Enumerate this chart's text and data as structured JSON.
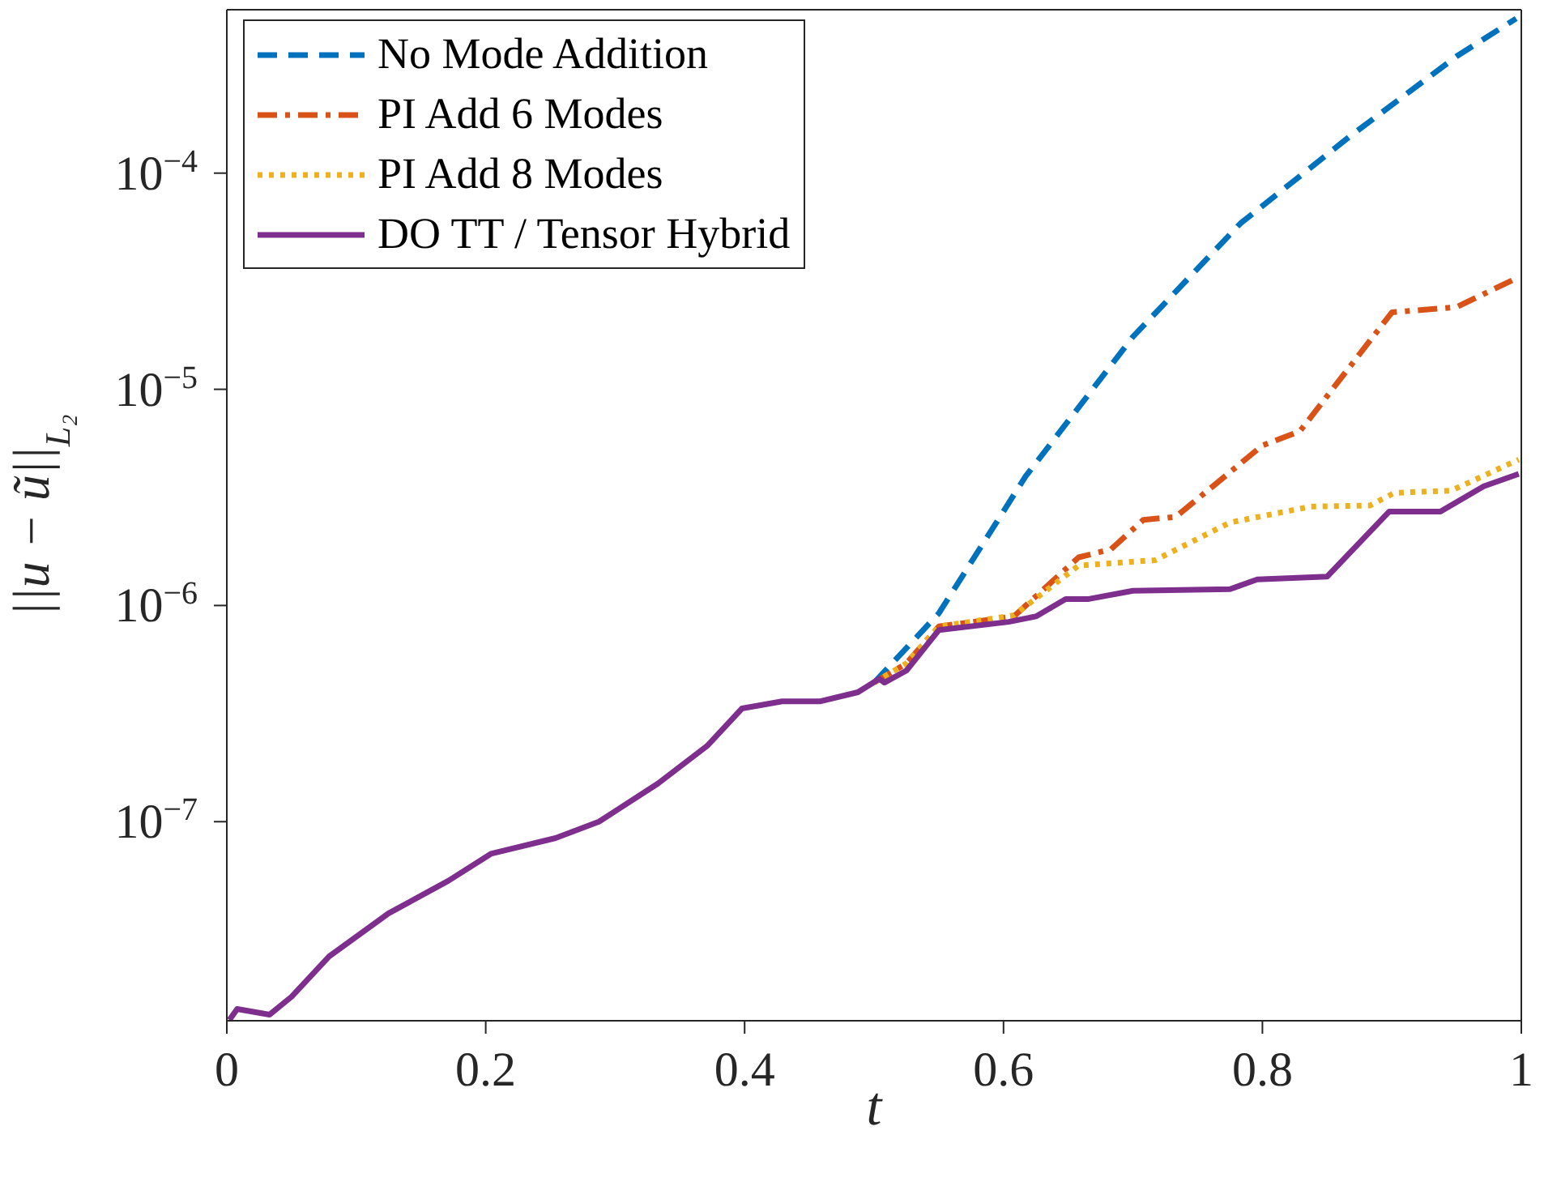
{
  "chart_data": {
    "type": "line",
    "xlabel": "t",
    "ylabel": "||u − ũ||$_{L₂}$",
    "log": "y",
    "xlim": [
      0,
      1
    ],
    "ylim": [
      1.2e-08,
      0.00057
    ],
    "xticks": [
      0,
      0.2,
      0.4,
      0.6,
      0.8,
      1
    ],
    "yticks": [
      {
        "value": 1e-07,
        "label": "10$^{−7}$"
      },
      {
        "value": 1e-06,
        "label": "10$^{−6}$"
      },
      {
        "value": 1e-05,
        "label": "10$^{−5}$"
      },
      {
        "value": 0.0001,
        "label": "10$^{−4}$"
      }
    ],
    "legend": "top left",
    "marker": "none",
    "series": [
      {
        "name": "No Mode Addition",
        "color": "#0072bd",
        "line_style": "dashed",
        "x": [
          0.5,
          0.55,
          0.617,
          0.7,
          0.783,
          0.867,
          0.95,
          0.996
        ],
        "values": [
          4.4e-07,
          9.2e-07,
          3.95e-06,
          1.75e-05,
          5.85e-05,
          0.000147,
          0.000347,
          0.000519
        ]
      },
      {
        "name": "PI Add 6 Modes",
        "color": "#d95319",
        "line_style": "dashdot",
        "x": [
          0.5,
          0.525,
          0.55,
          0.608,
          0.658,
          0.683,
          0.708,
          0.733,
          0.8,
          0.829,
          0.9,
          0.95,
          0.996
        ],
        "values": [
          4.4e-07,
          5.4e-07,
          8e-07,
          8.9e-07,
          1.67e-06,
          1.82e-06,
          2.49e-06,
          2.57e-06,
          5.5e-06,
          6.4e-06,
          2.27e-05,
          2.4e-05,
          3.26e-05
        ]
      },
      {
        "name": "PI Add 8 Modes",
        "color": "#edb120",
        "line_style": "dotted",
        "x": [
          0.5,
          0.525,
          0.55,
          0.608,
          0.658,
          0.717,
          0.775,
          0.8375,
          0.883,
          0.902,
          0.946,
          0.998
        ],
        "values": [
          4.4e-07,
          5.4e-07,
          8e-07,
          9e-07,
          1.53e-06,
          1.62e-06,
          2.42e-06,
          2.87e-06,
          2.9e-06,
          3.32e-06,
          3.4e-06,
          4.73e-06
        ]
      },
      {
        "name": "DO TT / Tensor Hybrid",
        "color": "#7e2f8e",
        "line_style": "solid",
        "x": [
          0.002,
          0.008,
          0.033,
          0.05,
          0.079,
          0.125,
          0.171,
          0.204,
          0.254,
          0.2875,
          0.333,
          0.371,
          0.398,
          0.429,
          0.458,
          0.4875,
          0.504,
          0.508,
          0.525,
          0.55,
          0.604,
          0.625,
          0.648,
          0.665,
          0.7,
          0.775,
          0.796,
          0.85,
          0.898,
          0.9375,
          0.971,
          0.998
        ],
        "values": [
          1.21e-08,
          1.36e-08,
          1.28e-08,
          1.55e-08,
          2.38e-08,
          3.77e-08,
          5.32e-08,
          7.1e-08,
          8.4e-08,
          1e-07,
          1.5e-07,
          2.24e-07,
          3.34e-07,
          3.6e-07,
          3.6e-07,
          3.97e-07,
          4.58e-07,
          4.4e-07,
          5e-07,
          7.7e-07,
          8.4e-07,
          8.9e-07,
          1.07e-06,
          1.07e-06,
          1.17e-06,
          1.19e-06,
          1.32e-06,
          1.36e-06,
          2.72e-06,
          2.72e-06,
          3.56e-06,
          4.06e-06
        ]
      }
    ]
  }
}
